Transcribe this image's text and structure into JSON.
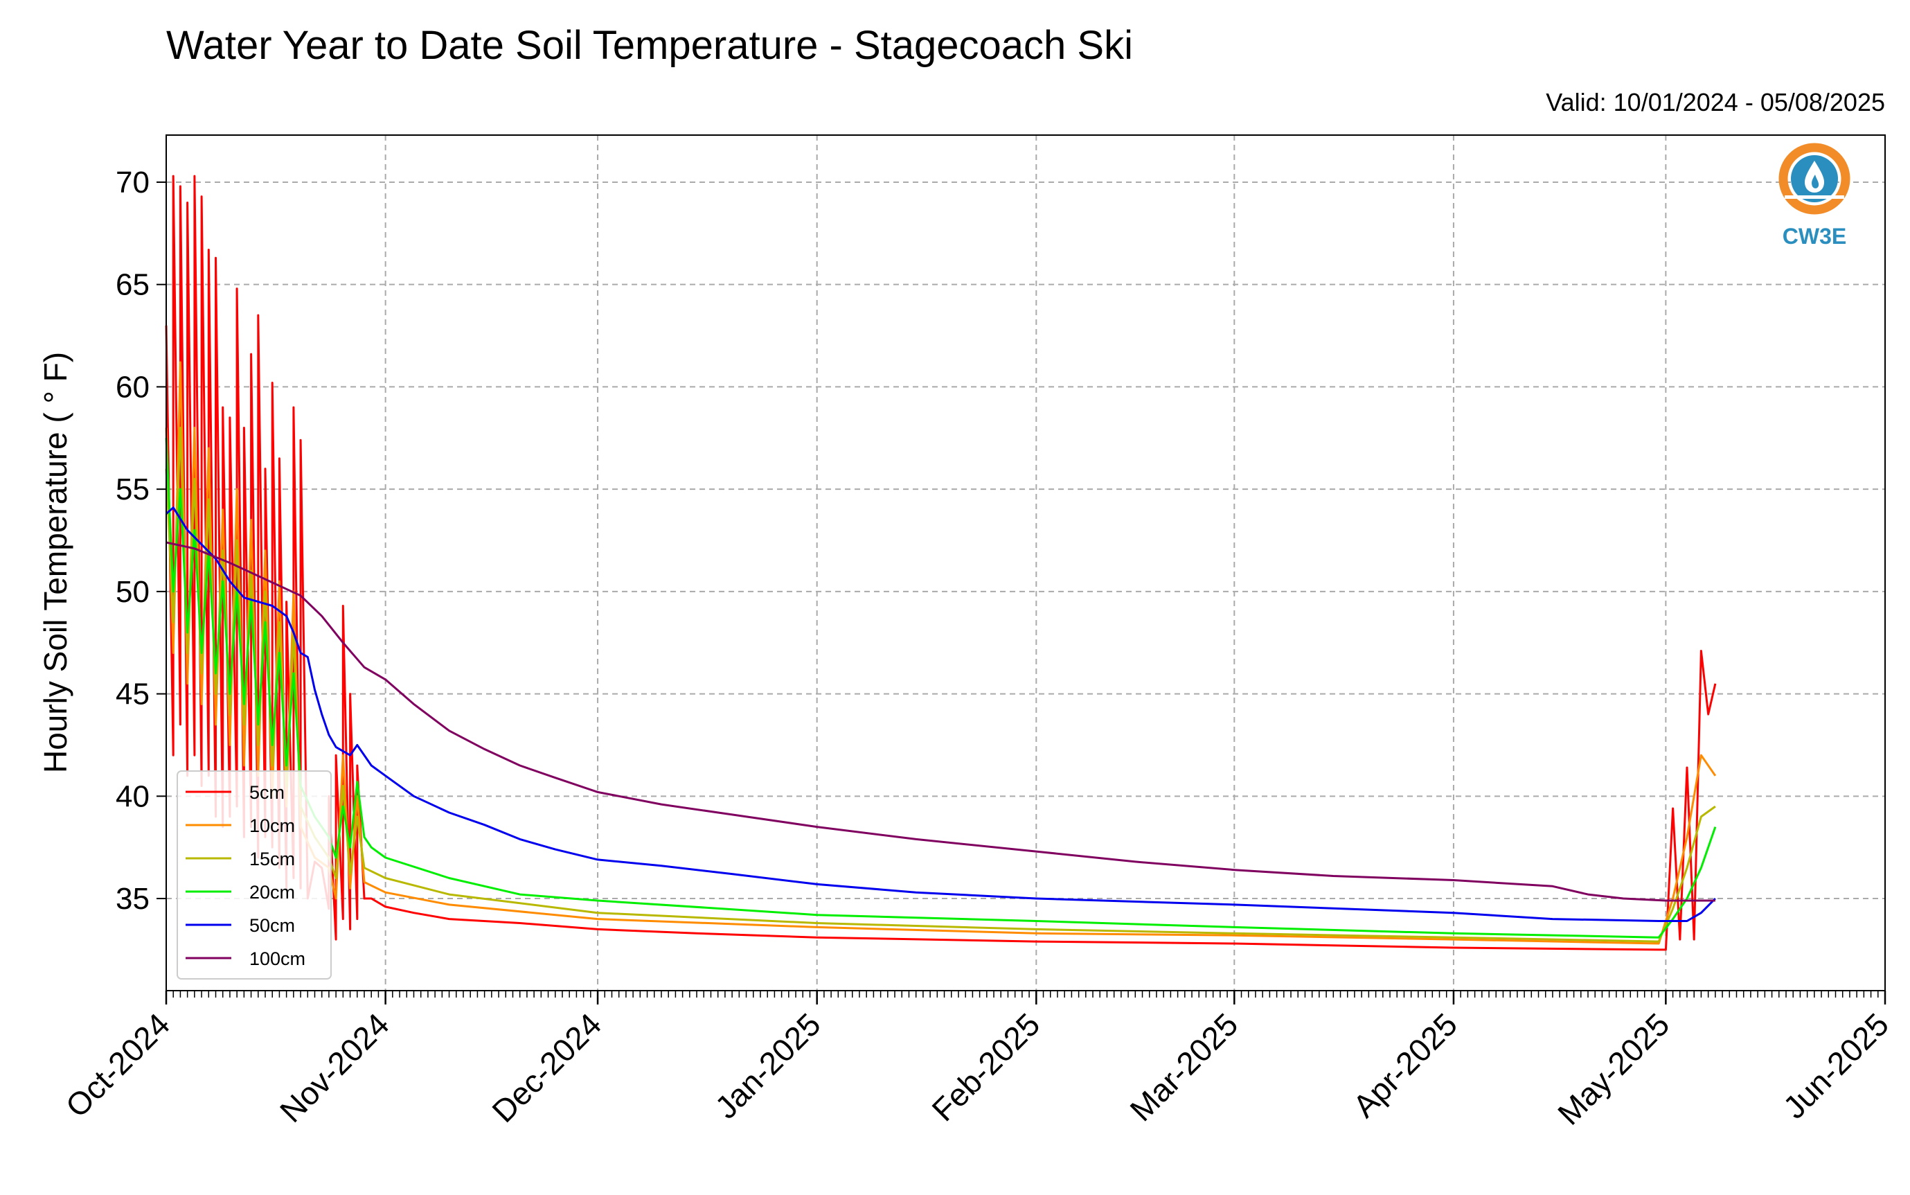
{
  "chart_data": {
    "type": "line",
    "title": "Water Year to Date Soil Temperature - Stagecoach Ski",
    "subtitle": "Valid: 10/01/2024 - 05/08/2025",
    "ylabel": "Hourly Soil Temperature ( ° F)",
    "xlabel": "",
    "ylim": [
      30.5,
      72.3
    ],
    "yticks": [
      35,
      40,
      45,
      50,
      55,
      60,
      65,
      70
    ],
    "xlim": [
      "2024-10-01",
      "2025-06-01"
    ],
    "xticks": [
      {
        "date": "2024-10-01",
        "label": "Oct-2024"
      },
      {
        "date": "2024-11-01",
        "label": "Nov-2024"
      },
      {
        "date": "2024-12-01",
        "label": "Dec-2024"
      },
      {
        "date": "2025-01-01",
        "label": "Jan-2025"
      },
      {
        "date": "2025-02-01",
        "label": "Feb-2025"
      },
      {
        "date": "2025-03-01",
        "label": "Mar-2025"
      },
      {
        "date": "2025-04-01",
        "label": "Apr-2025"
      },
      {
        "date": "2025-05-01",
        "label": "May-2025"
      },
      {
        "date": "2025-06-01",
        "label": "Jun-2025"
      }
    ],
    "grid": true,
    "legend_position": "lower-left",
    "series": [
      {
        "name": "5cm",
        "color": "#ff0000",
        "points": [
          [
            "2024-10-01",
            63.0
          ],
          [
            "2024-10-02",
            42.0
          ],
          [
            "2024-10-02",
            70.3
          ],
          [
            "2024-10-03",
            43.5
          ],
          [
            "2024-10-03",
            69.8
          ],
          [
            "2024-10-04",
            41.0
          ],
          [
            "2024-10-04",
            69.0
          ],
          [
            "2024-10-05",
            42.0
          ],
          [
            "2024-10-05",
            70.3
          ],
          [
            "2024-10-06",
            40.5
          ],
          [
            "2024-10-06",
            69.3
          ],
          [
            "2024-10-07",
            41.0
          ],
          [
            "2024-10-07",
            66.7
          ],
          [
            "2024-10-08",
            39.0
          ],
          [
            "2024-10-08",
            66.3
          ],
          [
            "2024-10-09",
            38.5
          ],
          [
            "2024-10-09",
            59.0
          ],
          [
            "2024-10-10",
            39.0
          ],
          [
            "2024-10-10",
            58.5
          ],
          [
            "2024-10-11",
            39.5
          ],
          [
            "2024-10-11",
            64.8
          ],
          [
            "2024-10-12",
            38.0
          ],
          [
            "2024-10-12",
            58.0
          ],
          [
            "2024-10-13",
            38.5
          ],
          [
            "2024-10-13",
            61.6
          ],
          [
            "2024-10-14",
            37.0
          ],
          [
            "2024-10-14",
            63.5
          ],
          [
            "2024-10-15",
            38.0
          ],
          [
            "2024-10-15",
            56.0
          ],
          [
            "2024-10-16",
            37.5
          ],
          [
            "2024-10-16",
            60.2
          ],
          [
            "2024-10-17",
            36.5
          ],
          [
            "2024-10-17",
            56.5
          ],
          [
            "2024-10-18",
            35.5
          ],
          [
            "2024-10-18",
            49.5
          ],
          [
            "2024-10-19",
            36.0
          ],
          [
            "2024-10-19",
            59.0
          ],
          [
            "2024-10-20",
            35.5
          ],
          [
            "2024-10-20",
            57.4
          ],
          [
            "2024-10-21",
            35.0
          ],
          [
            "2024-10-22",
            36.8
          ],
          [
            "2024-10-23",
            36.5
          ],
          [
            "2024-10-24",
            34.5
          ],
          [
            "2024-10-24",
            40.0
          ],
          [
            "2024-10-25",
            33.0
          ],
          [
            "2024-10-25",
            42.0
          ],
          [
            "2024-10-26",
            34.0
          ],
          [
            "2024-10-26",
            49.3
          ],
          [
            "2024-10-27",
            33.5
          ],
          [
            "2024-10-27",
            45.0
          ],
          [
            "2024-10-28",
            34.0
          ],
          [
            "2024-10-28",
            41.5
          ],
          [
            "2024-10-29",
            35.0
          ],
          [
            "2024-10-30",
            35.0
          ],
          [
            "2024-11-01",
            34.6
          ],
          [
            "2024-11-05",
            34.3
          ],
          [
            "2024-11-10",
            34.0
          ],
          [
            "2024-11-20",
            33.8
          ],
          [
            "2024-12-01",
            33.5
          ],
          [
            "2024-12-15",
            33.3
          ],
          [
            "2025-01-01",
            33.1
          ],
          [
            "2025-02-01",
            32.9
          ],
          [
            "2025-03-01",
            32.8
          ],
          [
            "2025-04-01",
            32.6
          ],
          [
            "2025-04-30",
            32.5
          ],
          [
            "2025-05-01",
            32.5
          ],
          [
            "2025-05-02",
            39.4
          ],
          [
            "2025-05-03",
            33.0
          ],
          [
            "2025-05-04",
            41.4
          ],
          [
            "2025-05-05",
            33.0
          ],
          [
            "2025-05-06",
            47.1
          ],
          [
            "2025-05-07",
            44.0
          ],
          [
            "2025-05-08",
            45.5
          ]
        ]
      },
      {
        "name": "10cm",
        "color": "#ff8c00",
        "points": [
          [
            "2024-10-01",
            58.0
          ],
          [
            "2024-10-02",
            47.0
          ],
          [
            "2024-10-03",
            61.2
          ],
          [
            "2024-10-04",
            45.5
          ],
          [
            "2024-10-05",
            58.0
          ],
          [
            "2024-10-06",
            44.5
          ],
          [
            "2024-10-07",
            57.0
          ],
          [
            "2024-10-08",
            43.5
          ],
          [
            "2024-10-09",
            54.0
          ],
          [
            "2024-10-10",
            42.5
          ],
          [
            "2024-10-11",
            55.0
          ],
          [
            "2024-10-12",
            41.5
          ],
          [
            "2024-10-13",
            53.5
          ],
          [
            "2024-10-14",
            41.0
          ],
          [
            "2024-10-15",
            52.0
          ],
          [
            "2024-10-16",
            40.0
          ],
          [
            "2024-10-17",
            50.5
          ],
          [
            "2024-10-18",
            39.5
          ],
          [
            "2024-10-19",
            50.0
          ],
          [
            "2024-10-20",
            38.5
          ],
          [
            "2024-10-22",
            37.0
          ],
          [
            "2024-10-24",
            36.5
          ],
          [
            "2024-10-25",
            35.0
          ],
          [
            "2024-10-26",
            42.0
          ],
          [
            "2024-10-27",
            35.5
          ],
          [
            "2024-10-28",
            40.0
          ],
          [
            "2024-10-29",
            35.8
          ],
          [
            "2024-11-01",
            35.3
          ],
          [
            "2024-11-10",
            34.7
          ],
          [
            "2024-12-01",
            34.0
          ],
          [
            "2025-01-01",
            33.6
          ],
          [
            "2025-02-01",
            33.3
          ],
          [
            "2025-03-01",
            33.2
          ],
          [
            "2025-04-01",
            33.0
          ],
          [
            "2025-04-30",
            32.8
          ],
          [
            "2025-05-02",
            35.0
          ],
          [
            "2025-05-04",
            38.0
          ],
          [
            "2025-05-06",
            42.0
          ],
          [
            "2025-05-08",
            41.0
          ]
        ]
      },
      {
        "name": "15cm",
        "color": "#b8b800",
        "points": [
          [
            "2024-10-01",
            56.0
          ],
          [
            "2024-10-02",
            48.5
          ],
          [
            "2024-10-03",
            58.0
          ],
          [
            "2024-10-04",
            47.0
          ],
          [
            "2024-10-05",
            55.5
          ],
          [
            "2024-10-06",
            46.0
          ],
          [
            "2024-10-07",
            54.5
          ],
          [
            "2024-10-08",
            45.0
          ],
          [
            "2024-10-09",
            52.0
          ],
          [
            "2024-10-10",
            44.0
          ],
          [
            "2024-10-11",
            52.5
          ],
          [
            "2024-10-12",
            43.5
          ],
          [
            "2024-10-13",
            51.0
          ],
          [
            "2024-10-14",
            42.5
          ],
          [
            "2024-10-15",
            50.0
          ],
          [
            "2024-10-16",
            41.5
          ],
          [
            "2024-10-17",
            48.5
          ],
          [
            "2024-10-18",
            40.5
          ],
          [
            "2024-10-19",
            48.0
          ],
          [
            "2024-10-20",
            39.5
          ],
          [
            "2024-10-22",
            38.0
          ],
          [
            "2024-10-24",
            37.0
          ],
          [
            "2024-10-25",
            36.0
          ],
          [
            "2024-10-26",
            40.5
          ],
          [
            "2024-10-27",
            36.2
          ],
          [
            "2024-10-28",
            39.0
          ],
          [
            "2024-10-29",
            36.5
          ],
          [
            "2024-11-01",
            36.0
          ],
          [
            "2024-11-10",
            35.2
          ],
          [
            "2024-12-01",
            34.3
          ],
          [
            "2025-01-01",
            33.8
          ],
          [
            "2025-02-01",
            33.5
          ],
          [
            "2025-03-01",
            33.3
          ],
          [
            "2025-04-01",
            33.1
          ],
          [
            "2025-04-30",
            32.9
          ],
          [
            "2025-05-02",
            34.5
          ],
          [
            "2025-05-04",
            36.5
          ],
          [
            "2025-05-06",
            39.0
          ],
          [
            "2025-05-08",
            39.5
          ]
        ]
      },
      {
        "name": "20cm",
        "color": "#00ee00",
        "points": [
          [
            "2024-10-01",
            57.5
          ],
          [
            "2024-10-02",
            50.0
          ],
          [
            "2024-10-03",
            55.0
          ],
          [
            "2024-10-04",
            48.0
          ],
          [
            "2024-10-05",
            53.0
          ],
          [
            "2024-10-06",
            47.0
          ],
          [
            "2024-10-07",
            52.0
          ],
          [
            "2024-10-08",
            46.0
          ],
          [
            "2024-10-09",
            50.5
          ],
          [
            "2024-10-10",
            45.0
          ],
          [
            "2024-10-11",
            50.0
          ],
          [
            "2024-10-12",
            44.5
          ],
          [
            "2024-10-13",
            49.5
          ],
          [
            "2024-10-14",
            43.5
          ],
          [
            "2024-10-15",
            48.5
          ],
          [
            "2024-10-16",
            42.5
          ],
          [
            "2024-10-17",
            47.0
          ],
          [
            "2024-10-18",
            41.5
          ],
          [
            "2024-10-19",
            46.0
          ],
          [
            "2024-10-20",
            40.5
          ],
          [
            "2024-10-22",
            39.0
          ],
          [
            "2024-10-24",
            38.0
          ],
          [
            "2024-10-25",
            37.0
          ],
          [
            "2024-10-26",
            39.5
          ],
          [
            "2024-10-27",
            37.5
          ],
          [
            "2024-10-28",
            40.7
          ],
          [
            "2024-10-29",
            38.0
          ],
          [
            "2024-10-30",
            37.5
          ],
          [
            "2024-11-01",
            37.0
          ],
          [
            "2024-11-10",
            36.0
          ],
          [
            "2024-11-20",
            35.2
          ],
          [
            "2024-12-01",
            34.9
          ],
          [
            "2025-01-01",
            34.2
          ],
          [
            "2025-02-01",
            33.9
          ],
          [
            "2025-03-01",
            33.6
          ],
          [
            "2025-04-01",
            33.3
          ],
          [
            "2025-04-30",
            33.1
          ],
          [
            "2025-05-02",
            34.0
          ],
          [
            "2025-05-04",
            35.0
          ],
          [
            "2025-05-06",
            36.5
          ],
          [
            "2025-05-08",
            38.5
          ]
        ]
      },
      {
        "name": "50cm",
        "color": "#0000ee",
        "points": [
          [
            "2024-10-01",
            53.8
          ],
          [
            "2024-10-02",
            54.1
          ],
          [
            "2024-10-04",
            53.0
          ],
          [
            "2024-10-06",
            52.3
          ],
          [
            "2024-10-08",
            51.6
          ],
          [
            "2024-10-10",
            50.5
          ],
          [
            "2024-10-12",
            49.7
          ],
          [
            "2024-10-14",
            49.5
          ],
          [
            "2024-10-16",
            49.3
          ],
          [
            "2024-10-18",
            48.8
          ],
          [
            "2024-10-19",
            48.0
          ],
          [
            "2024-10-20",
            47.0
          ],
          [
            "2024-10-21",
            46.8
          ],
          [
            "2024-10-22",
            45.2
          ],
          [
            "2024-10-23",
            44.0
          ],
          [
            "2024-10-24",
            43.0
          ],
          [
            "2024-10-25",
            42.4
          ],
          [
            "2024-10-26",
            42.2
          ],
          [
            "2024-10-27",
            42.0
          ],
          [
            "2024-10-28",
            42.5
          ],
          [
            "2024-10-30",
            41.5
          ],
          [
            "2024-11-01",
            41.0
          ],
          [
            "2024-11-05",
            40.0
          ],
          [
            "2024-11-10",
            39.2
          ],
          [
            "2024-11-15",
            38.6
          ],
          [
            "2024-11-20",
            37.9
          ],
          [
            "2024-11-25",
            37.4
          ],
          [
            "2024-12-01",
            36.9
          ],
          [
            "2024-12-10",
            36.6
          ],
          [
            "2024-12-20",
            36.2
          ],
          [
            "2025-01-01",
            35.7
          ],
          [
            "2025-01-15",
            35.3
          ],
          [
            "2025-02-01",
            35.0
          ],
          [
            "2025-03-01",
            34.7
          ],
          [
            "2025-04-01",
            34.3
          ],
          [
            "2025-04-15",
            34.0
          ],
          [
            "2025-04-30",
            33.9
          ],
          [
            "2025-05-04",
            33.9
          ],
          [
            "2025-05-06",
            34.3
          ],
          [
            "2025-05-08",
            35.0
          ]
        ]
      },
      {
        "name": "100cm",
        "color": "#800060",
        "points": [
          [
            "2024-10-01",
            52.4
          ],
          [
            "2024-10-05",
            52.1
          ],
          [
            "2024-10-10",
            51.4
          ],
          [
            "2024-10-15",
            50.6
          ],
          [
            "2024-10-20",
            49.8
          ],
          [
            "2024-10-23",
            48.8
          ],
          [
            "2024-10-26",
            47.5
          ],
          [
            "2024-10-29",
            46.3
          ],
          [
            "2024-11-01",
            45.7
          ],
          [
            "2024-11-05",
            44.5
          ],
          [
            "2024-11-10",
            43.2
          ],
          [
            "2024-11-15",
            42.3
          ],
          [
            "2024-11-20",
            41.5
          ],
          [
            "2024-11-25",
            40.9
          ],
          [
            "2024-12-01",
            40.2
          ],
          [
            "2024-12-10",
            39.6
          ],
          [
            "2024-12-20",
            39.1
          ],
          [
            "2025-01-01",
            38.5
          ],
          [
            "2025-01-15",
            37.9
          ],
          [
            "2025-02-01",
            37.3
          ],
          [
            "2025-02-15",
            36.8
          ],
          [
            "2025-03-01",
            36.4
          ],
          [
            "2025-03-15",
            36.1
          ],
          [
            "2025-04-01",
            35.9
          ],
          [
            "2025-04-15",
            35.6
          ],
          [
            "2025-04-20",
            35.2
          ],
          [
            "2025-04-25",
            35.0
          ],
          [
            "2025-05-01",
            34.9
          ],
          [
            "2025-05-08",
            34.9
          ]
        ]
      }
    ]
  },
  "logo": {
    "text": "CW3E",
    "orange": "#f28c28",
    "blue": "#2a8fbf"
  },
  "colors": {
    "grid": "#aaaaaa",
    "axis": "#000000"
  }
}
